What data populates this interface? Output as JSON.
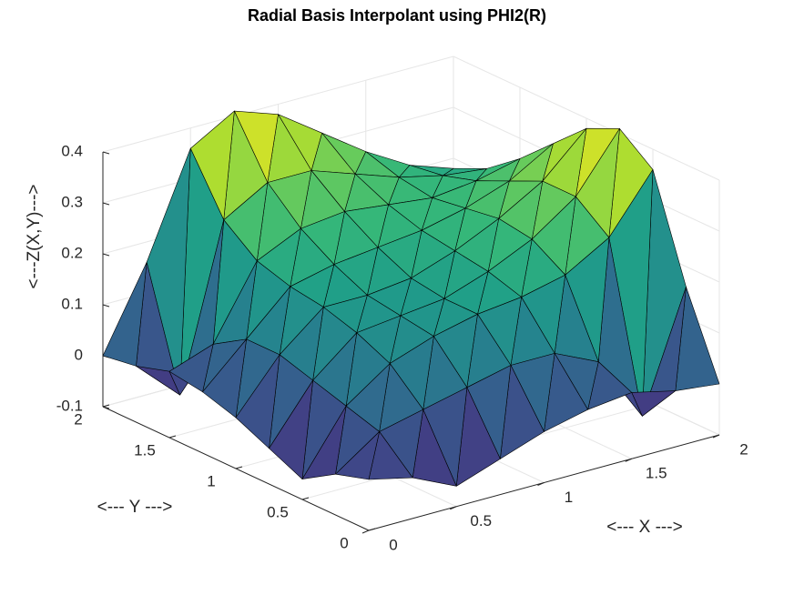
{
  "chart_data": {
    "type": "surface3d",
    "title": "Radial Basis Interpolant using PHI2(R)",
    "xlabel": "<--- X --->",
    "ylabel": "<--- Y --->",
    "zlabel": "<---Z(X,Y)--->",
    "x": [
      0,
      0.25,
      0.5,
      0.75,
      1,
      1.25,
      1.5,
      1.75,
      2
    ],
    "y": [
      0,
      0.25,
      0.5,
      0.75,
      1,
      1.25,
      1.5,
      1.75,
      2
    ],
    "z": [
      [
        0,
        -0.02,
        -0.06,
        -0.03,
        0.0,
        0.02,
        0.03,
        0.01,
        0.0
      ],
      [
        -0.02,
        0.04,
        0.06,
        0.08,
        0.1,
        0.1,
        0.06,
        -0.07,
        0.16
      ],
      [
        -0.06,
        0.06,
        0.12,
        0.15,
        0.17,
        0.18,
        0.2,
        0.25,
        0.36
      ],
      [
        -0.03,
        0.08,
        0.15,
        0.16,
        0.17,
        0.2,
        0.24,
        0.3,
        0.41
      ],
      [
        0.0,
        0.1,
        0.17,
        0.17,
        0.18,
        0.21,
        0.25,
        0.3,
        0.38
      ],
      [
        0.02,
        0.1,
        0.18,
        0.2,
        0.21,
        0.22,
        0.24,
        0.27,
        0.32
      ],
      [
        0.03,
        0.06,
        0.2,
        0.24,
        0.25,
        0.24,
        0.23,
        0.24,
        0.26
      ],
      [
        0.01,
        -0.07,
        0.25,
        0.3,
        0.3,
        0.27,
        0.24,
        0.22,
        0.21
      ],
      [
        0.0,
        0.16,
        0.36,
        0.41,
        0.38,
        0.32,
        0.26,
        0.21,
        0.18
      ]
    ],
    "xlim": [
      0,
      2
    ],
    "ylim": [
      0,
      2
    ],
    "zlim": [
      -0.1,
      0.4
    ],
    "xticks": [
      0,
      0.5,
      1,
      1.5,
      2
    ],
    "yticks": [
      0,
      0.5,
      1,
      1.5,
      2
    ],
    "zticks": [
      -0.1,
      0,
      0.1,
      0.2,
      0.3,
      0.4
    ],
    "grid": true,
    "colormap": "viridis"
  }
}
